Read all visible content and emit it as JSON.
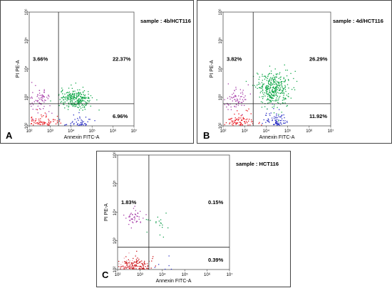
{
  "chart_data": [
    {
      "type": "scatter",
      "panel_label": "A",
      "sample_label": "sample : 4b/HCT116",
      "xlabel": "Annexin FITC-A",
      "ylabel": "PI PE-A",
      "x_scale": "log",
      "y_scale": "log",
      "xlim": [
        100,
        10000000
      ],
      "ylim": [
        100,
        1000000
      ],
      "x_ticks": [
        "10²",
        "10³",
        "10⁴",
        "10⁵",
        "10⁶",
        "10⁷"
      ],
      "y_ticks": [
        "10²",
        "10³",
        "10⁴",
        "10⁵",
        "10⁶"
      ],
      "gate": {
        "x": 2500,
        "y": 600
      },
      "quadrant_percents": {
        "upper_left": "3.66%",
        "upper_right": "22.37%",
        "lower_right": "6.96%"
      },
      "clusters": [
        {
          "name": "viable",
          "color": "#e8141c",
          "center_log": [
            2.6,
            1.75
          ],
          "spread_log": [
            0.42,
            0.28
          ],
          "count": 420
        },
        {
          "name": "early_apoptotic",
          "color": "#2a2fc4",
          "center_log": [
            4.3,
            1.95
          ],
          "spread_log": [
            0.3,
            0.22
          ],
          "count": 140
        },
        {
          "name": "late_apoptotic",
          "color": "#12a84a",
          "center_log": [
            4.2,
            2.95
          ],
          "spread_log": [
            0.38,
            0.18
          ],
          "count": 260
        },
        {
          "name": "necrotic",
          "color": "#a63ca8",
          "center_log": [
            2.5,
            2.9
          ],
          "spread_log": [
            0.25,
            0.22
          ],
          "count": 70
        }
      ]
    },
    {
      "type": "scatter",
      "panel_label": "B",
      "sample_label": "sample : 4d/HCT116",
      "xlabel": "Annexin FITC-A",
      "ylabel": "PI PE-A",
      "x_scale": "log",
      "y_scale": "log",
      "xlim": [
        100,
        10000000
      ],
      "ylim": [
        100,
        1000000
      ],
      "x_ticks": [
        "10²",
        "10³",
        "10⁴",
        "10⁵",
        "10⁶",
        "10⁷"
      ],
      "y_ticks": [
        "10²",
        "10³",
        "10⁴",
        "10⁵",
        "10⁶"
      ],
      "gate": {
        "x": 2500,
        "y": 600
      },
      "quadrant_percents": {
        "upper_left": "3.82%",
        "upper_right": "26.29%",
        "lower_right": "11.92%"
      },
      "clusters": [
        {
          "name": "viable",
          "color": "#e8141c",
          "center_log": [
            2.7,
            1.8
          ],
          "spread_log": [
            0.38,
            0.3
          ],
          "count": 380
        },
        {
          "name": "early_apoptotic",
          "color": "#2a2fc4",
          "center_log": [
            4.4,
            2.0
          ],
          "spread_log": [
            0.28,
            0.25
          ],
          "count": 180
        },
        {
          "name": "late_apoptotic",
          "color": "#12a84a",
          "center_log": [
            4.3,
            3.3
          ],
          "spread_log": [
            0.38,
            0.3
          ],
          "count": 360
        },
        {
          "name": "necrotic",
          "color": "#a63ca8",
          "center_log": [
            2.6,
            2.95
          ],
          "spread_log": [
            0.28,
            0.2
          ],
          "count": 70
        }
      ]
    },
    {
      "type": "scatter",
      "panel_label": "C",
      "sample_label": "sample : HCT116",
      "xlabel": "Annexin FITC-A",
      "ylabel": "PI PE-A",
      "x_scale": "log",
      "y_scale": "log",
      "xlim": [
        100,
        10000000
      ],
      "ylim": [
        100,
        1000000
      ],
      "x_ticks": [
        "10²",
        "10³",
        "10⁴",
        "10⁵",
        "10⁶",
        "10⁷"
      ],
      "y_ticks": [
        "10²",
        "10³",
        "10⁴",
        "10⁵",
        "10⁶"
      ],
      "gate": {
        "x": 2500,
        "y": 600
      },
      "quadrant_percents": {
        "upper_left": "1.83%",
        "upper_right": "0.15%",
        "lower_right": "0.39%"
      },
      "clusters": [
        {
          "name": "viable_dense",
          "color": "#cc1418",
          "center_log": [
            2.85,
            1.75
          ],
          "spread_log": [
            0.38,
            0.28
          ],
          "count": 700
        },
        {
          "name": "viable_light",
          "color": "#f19aa6",
          "center_log": [
            2.55,
            1.8
          ],
          "spread_log": [
            0.33,
            0.3
          ],
          "count": 180
        },
        {
          "name": "early_apoptotic",
          "color": "#3a3fc8",
          "center_log": [
            4.0,
            1.9
          ],
          "spread_log": [
            0.2,
            0.18
          ],
          "count": 45
        },
        {
          "name": "late_apoptotic",
          "color": "#16a050",
          "center_log": [
            3.85,
            3.6
          ],
          "spread_log": [
            0.3,
            0.2
          ],
          "count": 18
        },
        {
          "name": "necrotic",
          "color": "#a63ca8",
          "center_log": [
            2.7,
            3.85
          ],
          "spread_log": [
            0.2,
            0.15
          ],
          "count": 45
        }
      ]
    }
  ]
}
